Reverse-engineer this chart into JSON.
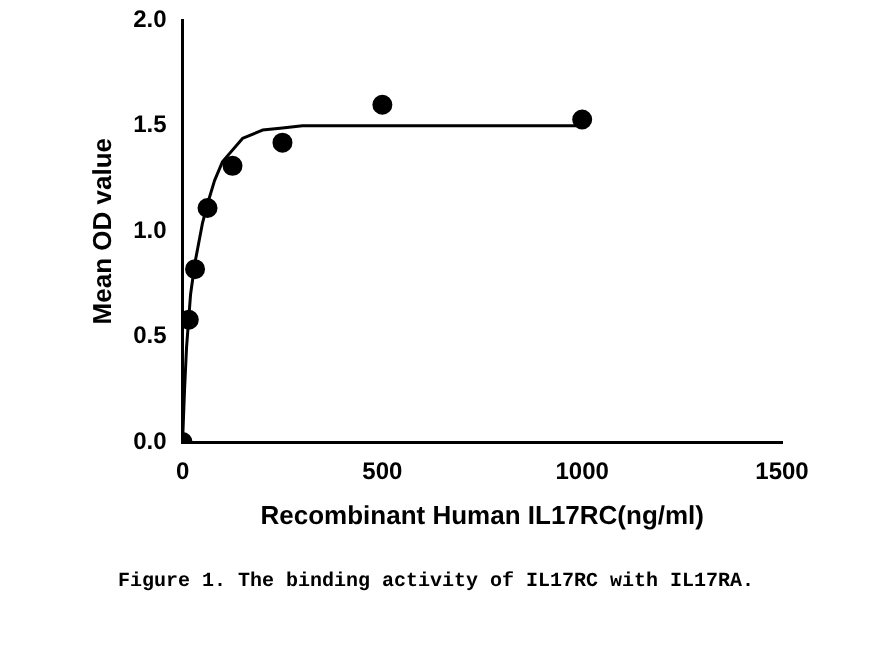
{
  "chart_data": {
    "type": "scatter",
    "xlabel": "Recombinant Human IL17RC(ng/ml)",
    "ylabel": "Mean OD value",
    "series": [
      {
        "color": "#000000",
        "marker": "circle",
        "x": [
          0,
          15.6,
          31.25,
          62.5,
          125,
          250,
          500,
          1000
        ],
        "values": [
          0,
          0.58,
          0.82,
          1.11,
          1.31,
          1.42,
          1.6,
          1.53
        ]
      },
      {
        "type": "line",
        "color": "#000000",
        "marker": "none",
        "x": [
          0,
          5,
          10,
          20,
          31,
          50,
          62.5,
          80,
          100,
          150,
          200,
          250,
          300,
          500,
          1000
        ],
        "values": [
          0,
          0.25,
          0.45,
          0.7,
          0.85,
          1.04,
          1.13,
          1.24,
          1.33,
          1.44,
          1.48,
          1.49,
          1.5,
          1.5,
          1.5
        ]
      }
    ],
    "xlim": [
      0,
      1500
    ],
    "xticks": [
      0,
      500,
      1000,
      1500
    ],
    "ylim": [
      0,
      2
    ],
    "yticks": [
      {
        "value": 0,
        "label": "0.0"
      },
      {
        "value": 0.5,
        "label": "0.5"
      },
      {
        "value": 1,
        "label": "1.0"
      },
      {
        "value": 1.5,
        "label": "1.5"
      },
      {
        "value": 2,
        "label": "2.0"
      }
    ],
    "grid": false,
    "legend": false,
    "annotations": [
      "Figure 1. The binding activity of IL17RC with IL17RA."
    ]
  }
}
